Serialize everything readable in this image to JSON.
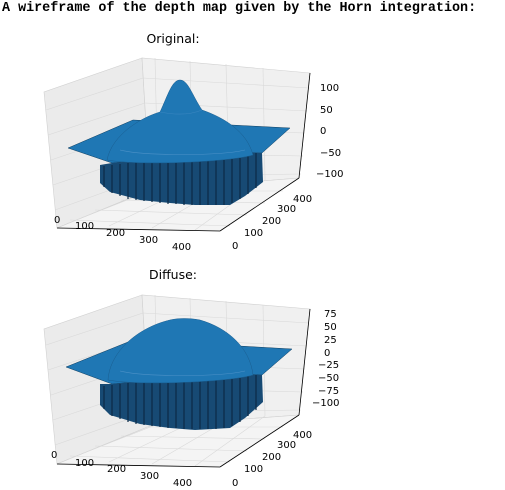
{
  "heading": "A wireframe of the depth map given by the Horn integration:",
  "chart_data": [
    {
      "type": "surface",
      "title": "Original:",
      "x_ticks": [
        "0",
        "100",
        "200",
        "300",
        "400"
      ],
      "y_ticks": [
        "0",
        "100",
        "200",
        "300",
        "400"
      ],
      "z_ticks": [
        "100",
        "50",
        "0",
        "−50",
        "−100"
      ],
      "zlim": [
        -110,
        125
      ],
      "surface_color": "#1f77b4",
      "grid": true
    },
    {
      "type": "surface",
      "title": "Diffuse:",
      "x_ticks": [
        "0",
        "100",
        "200",
        "300",
        "400"
      ],
      "y_ticks": [
        "0",
        "100",
        "200",
        "300",
        "400"
      ],
      "z_ticks": [
        "75",
        "50",
        "25",
        "0",
        "−25",
        "−50",
        "−75",
        "−100"
      ],
      "zlim": [
        -110,
        85
      ],
      "surface_color": "#1f77b4",
      "grid": true
    }
  ]
}
